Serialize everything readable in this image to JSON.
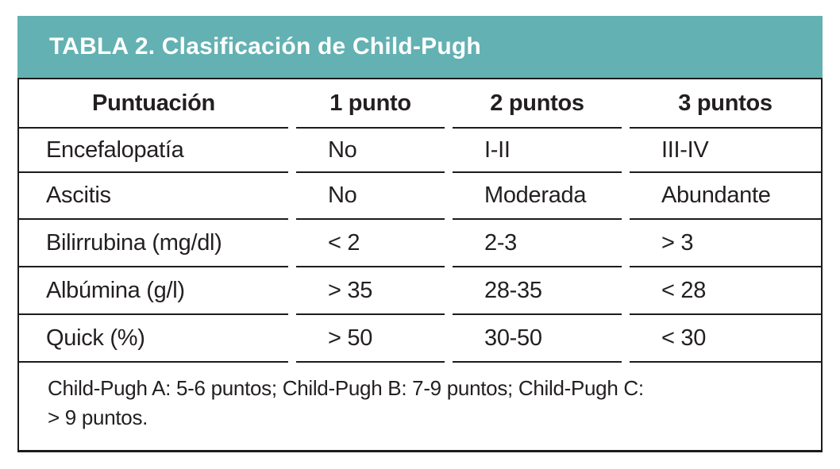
{
  "colors": {
    "accent_teal": "#63b1b3",
    "border_black": "#1c1c1c",
    "title_text": "#ffffff"
  },
  "title": "TABLA 2. Clasificación de Child-Pugh",
  "table": {
    "headers": [
      "Puntuación",
      "1 punto",
      "2 puntos",
      "3 puntos"
    ],
    "rows": [
      {
        "label": "Encefalopatía",
        "p1": "No",
        "p2": "I-II",
        "p3": "III-IV"
      },
      {
        "label": "Ascitis",
        "p1": "No",
        "p2": "Moderada",
        "p3": "Abundante"
      },
      {
        "label": "Bilirrubina (mg/dl)",
        "p1": "< 2",
        "p2": "2-3",
        "p3": "> 3"
      },
      {
        "label": "Albúmina (g/l)",
        "p1": "> 35",
        "p2": "28-35",
        "p3": "< 28"
      },
      {
        "label": "Quick (%)",
        "p1": "> 50",
        "p2": "30-50",
        "p3": "< 30"
      }
    ],
    "footnote": {
      "line1": "Child-Pugh A: 5-6 puntos; Child-Pugh B: 7-9 puntos; Child-Pugh C:",
      "line2": "> 9 puntos."
    }
  }
}
